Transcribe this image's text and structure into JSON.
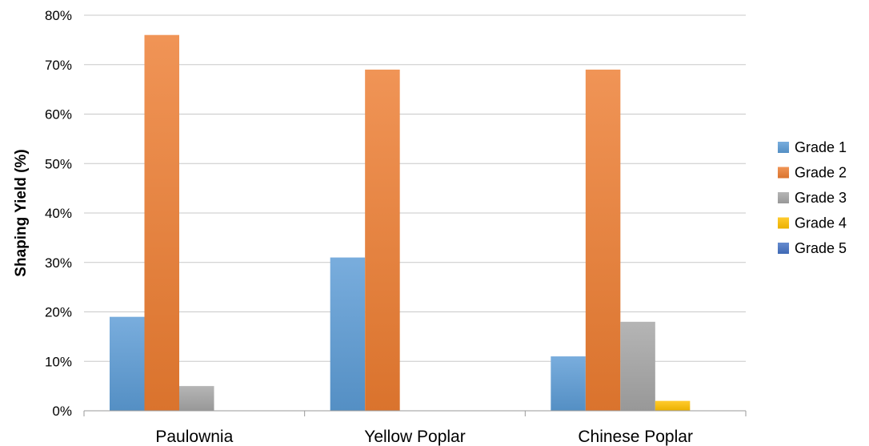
{
  "chart_data": {
    "type": "bar",
    "title": "",
    "xlabel": "",
    "ylabel": "Shaping Yield (%)",
    "ylim": [
      0,
      80
    ],
    "y_tick_format": "percent",
    "y_ticks": [
      "0%",
      "10%",
      "20%",
      "30%",
      "40%",
      "50%",
      "60%",
      "70%",
      "80%"
    ],
    "categories": [
      "Paulownia",
      "Yellow Poplar",
      "Chinese Poplar"
    ],
    "grid": true,
    "legend_position": "right",
    "series": [
      {
        "name": "Grade 1",
        "values": [
          19,
          31,
          11
        ],
        "color": "#5B9BD5"
      },
      {
        "name": "Grade 2",
        "values": [
          76,
          69,
          69
        ],
        "color": "#ED7D31"
      },
      {
        "name": "Grade 3",
        "values": [
          5,
          0,
          18
        ],
        "color": "#A5A5A5"
      },
      {
        "name": "Grade 4",
        "values": [
          0,
          0,
          2
        ],
        "color": "#FFC000"
      },
      {
        "name": "Grade 5",
        "values": [
          0,
          0,
          0
        ],
        "color": "#4472C4"
      }
    ]
  }
}
